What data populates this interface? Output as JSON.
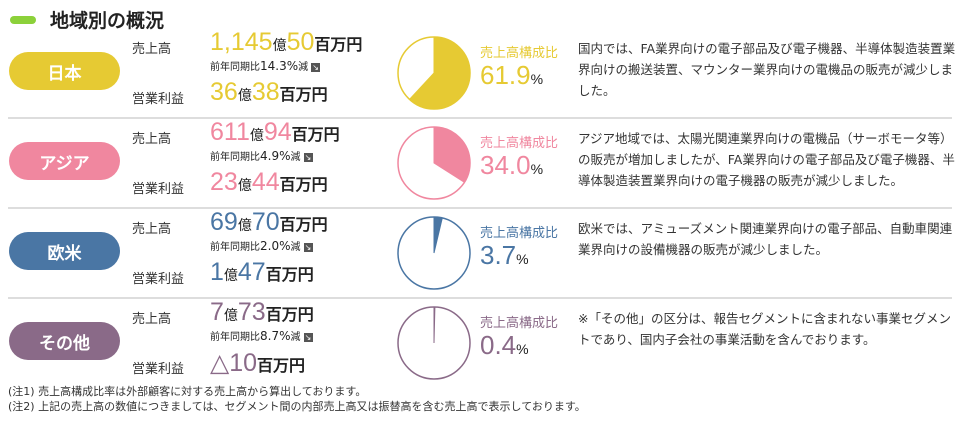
{
  "title": "地域別の概況",
  "labels": {
    "sales": "売上高",
    "profit": "営業利益",
    "share": "売上高構成比",
    "yoy_prefix": "前年同期比",
    "yoy_suffix": "減",
    "percent": "%"
  },
  "regions": [
    {
      "name": "日本",
      "color": "#e6ca33",
      "sales": [
        {
          "t": "1,145",
          "c": 1
        },
        {
          "t": "億",
          "c": 0
        },
        {
          "t": "50",
          "c": 1
        },
        {
          "t": "百万円",
          "c": 2
        }
      ],
      "yoy": "14.3%",
      "profit": [
        {
          "t": "36",
          "c": 1
        },
        {
          "t": "億",
          "c": 0
        },
        {
          "t": "38",
          "c": 1
        },
        {
          "t": "百万円",
          "c": 2
        }
      ],
      "share": 61.9,
      "share_text": "61.9",
      "desc": "国内では、FA業界向けの電子部品及び電子機器、半導体製造装置業界向けの搬送装置、マウンター業界向けの電機品の販売が減少しました。"
    },
    {
      "name": "アジア",
      "color": "#f0879f",
      "sales": [
        {
          "t": "611",
          "c": 1
        },
        {
          "t": "億",
          "c": 0
        },
        {
          "t": "94",
          "c": 1
        },
        {
          "t": "百万円",
          "c": 2
        }
      ],
      "yoy": "4.9%",
      "profit": [
        {
          "t": "23",
          "c": 1
        },
        {
          "t": "億",
          "c": 0
        },
        {
          "t": "44",
          "c": 1
        },
        {
          "t": "百万円",
          "c": 2
        }
      ],
      "share": 34.0,
      "share_text": "34.0",
      "desc": "アジア地域では、太陽光関連業界向けの電機品（サーボモータ等）の販売が増加しましたが、FA業界向けの電子部品及び電子機器、半導体製造装置業界向けの電子機器の販売が減少しました。"
    },
    {
      "name": "欧米",
      "color": "#4a76a4",
      "sales": [
        {
          "t": "69",
          "c": 1
        },
        {
          "t": "億",
          "c": 0
        },
        {
          "t": "70",
          "c": 1
        },
        {
          "t": "百万円",
          "c": 2
        }
      ],
      "yoy": "2.0%",
      "profit": [
        {
          "t": "1",
          "c": 1
        },
        {
          "t": "億",
          "c": 0
        },
        {
          "t": "47",
          "c": 1
        },
        {
          "t": "百万円",
          "c": 2
        }
      ],
      "share": 3.7,
      "share_text": "3.7",
      "desc": "欧米では、アミューズメント関連業界向けの電子部品、自動車関連業界向けの設備機器の販売が減少しました。"
    },
    {
      "name": "その他",
      "color": "#8a6a88",
      "sales": [
        {
          "t": "7",
          "c": 1
        },
        {
          "t": "億",
          "c": 0
        },
        {
          "t": "73",
          "c": 1
        },
        {
          "t": "百万円",
          "c": 2
        }
      ],
      "yoy": "8.7%",
      "profit": [
        {
          "t": "△10",
          "c": 1
        },
        {
          "t": "百万円",
          "c": 2
        }
      ],
      "share": 0.4,
      "share_text": "0.4",
      "desc": "※「その他」の区分は、報告セグメントに含まれない事業セグメントであり、国内子会社の事業活動を含んでおります。"
    }
  ],
  "notes": [
    "(注1) 売上高構成比率は外部顧客に対する売上高から算出しております。",
    "(注2) 上記の売上高の数値につきましては、セグメント間の内部売上高又は振替高を含む売上高で表示しております。"
  ]
}
